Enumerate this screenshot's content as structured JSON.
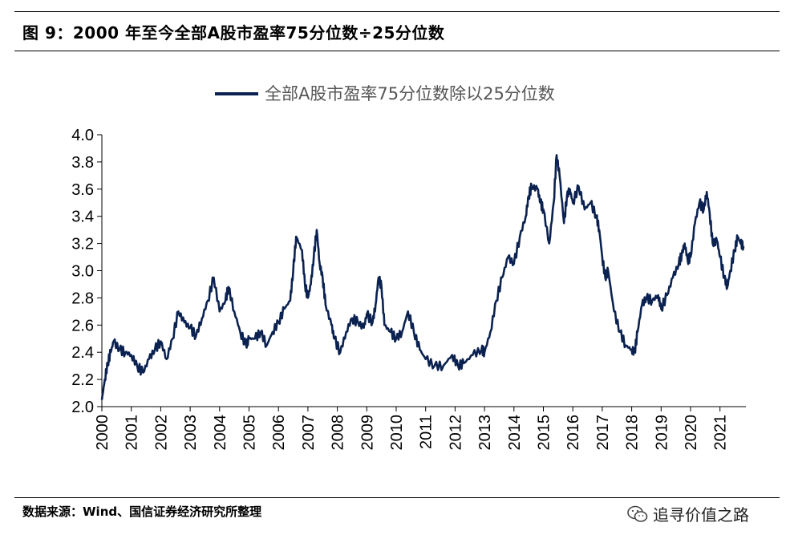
{
  "header": {
    "title": "图 9：2000 年至今全部A股市盈率75分位数÷25分位数"
  },
  "footer": {
    "source": "数据来源：Wind、国信证券经济研究所整理",
    "watermark": "追寻价值之路",
    "watermark_icon": "wechat-icon"
  },
  "colors": {
    "series": "#0b2250",
    "axis": "#000000"
  },
  "chart_data": {
    "type": "line",
    "legend_position": "top-center",
    "grid": false,
    "ylim": [
      2.0,
      4.0
    ],
    "yticks": [
      "2.0",
      "2.2",
      "2.4",
      "2.6",
      "2.8",
      "3.0",
      "3.2",
      "3.4",
      "3.6",
      "3.8",
      "4.0"
    ],
    "xlim": [
      2000,
      2021.8
    ],
    "xticks": [
      "2000",
      "2001",
      "2002",
      "2003",
      "2004",
      "2005",
      "2006",
      "2007",
      "2008",
      "2009",
      "2010",
      "2011",
      "2012",
      "2013",
      "2014",
      "2015",
      "2016",
      "2017",
      "2018",
      "2019",
      "2020",
      "2021"
    ],
    "series": [
      {
        "name": "全部A股市盈率75分位数除以25分位数",
        "points": [
          [
            2000.0,
            2.05
          ],
          [
            2000.1,
            2.2
          ],
          [
            2000.2,
            2.32
          ],
          [
            2000.3,
            2.4
          ],
          [
            2000.4,
            2.48
          ],
          [
            2000.6,
            2.42
          ],
          [
            2000.8,
            2.4
          ],
          [
            2001.0,
            2.38
          ],
          [
            2001.2,
            2.3
          ],
          [
            2001.4,
            2.25
          ],
          [
            2001.6,
            2.35
          ],
          [
            2001.8,
            2.42
          ],
          [
            2002.0,
            2.48
          ],
          [
            2002.2,
            2.35
          ],
          [
            2002.4,
            2.5
          ],
          [
            2002.6,
            2.7
          ],
          [
            2002.8,
            2.62
          ],
          [
            2003.0,
            2.58
          ],
          [
            2003.2,
            2.52
          ],
          [
            2003.4,
            2.65
          ],
          [
            2003.6,
            2.78
          ],
          [
            2003.8,
            2.95
          ],
          [
            2004.0,
            2.7
          ],
          [
            2004.2,
            2.78
          ],
          [
            2004.3,
            2.88
          ],
          [
            2004.5,
            2.7
          ],
          [
            2004.7,
            2.55
          ],
          [
            2004.9,
            2.45
          ],
          [
            2005.0,
            2.5
          ],
          [
            2005.2,
            2.5
          ],
          [
            2005.4,
            2.55
          ],
          [
            2005.6,
            2.45
          ],
          [
            2005.8,
            2.55
          ],
          [
            2006.0,
            2.62
          ],
          [
            2006.2,
            2.72
          ],
          [
            2006.4,
            2.78
          ],
          [
            2006.5,
            3.0
          ],
          [
            2006.6,
            3.25
          ],
          [
            2006.8,
            3.15
          ],
          [
            2006.9,
            2.9
          ],
          [
            2007.0,
            2.8
          ],
          [
            2007.1,
            2.9
          ],
          [
            2007.2,
            3.1
          ],
          [
            2007.3,
            3.3
          ],
          [
            2007.4,
            3.05
          ],
          [
            2007.5,
            2.95
          ],
          [
            2007.6,
            2.75
          ],
          [
            2007.8,
            2.6
          ],
          [
            2007.9,
            2.5
          ],
          [
            2008.1,
            2.4
          ],
          [
            2008.3,
            2.55
          ],
          [
            2008.5,
            2.65
          ],
          [
            2008.7,
            2.62
          ],
          [
            2008.9,
            2.58
          ],
          [
            2009.0,
            2.68
          ],
          [
            2009.2,
            2.62
          ],
          [
            2009.3,
            2.75
          ],
          [
            2009.4,
            2.95
          ],
          [
            2009.5,
            2.88
          ],
          [
            2009.6,
            2.6
          ],
          [
            2009.8,
            2.55
          ],
          [
            2010.0,
            2.5
          ],
          [
            2010.2,
            2.55
          ],
          [
            2010.4,
            2.7
          ],
          [
            2010.6,
            2.55
          ],
          [
            2010.8,
            2.42
          ],
          [
            2011.0,
            2.35
          ],
          [
            2011.3,
            2.3
          ],
          [
            2011.6,
            2.3
          ],
          [
            2011.9,
            2.38
          ],
          [
            2012.1,
            2.3
          ],
          [
            2012.3,
            2.32
          ],
          [
            2012.6,
            2.38
          ],
          [
            2012.9,
            2.42
          ],
          [
            2013.0,
            2.4
          ],
          [
            2013.2,
            2.55
          ],
          [
            2013.4,
            2.78
          ],
          [
            2013.6,
            2.95
          ],
          [
            2013.8,
            3.1
          ],
          [
            2014.0,
            3.05
          ],
          [
            2014.2,
            3.25
          ],
          [
            2014.4,
            3.4
          ],
          [
            2014.5,
            3.55
          ],
          [
            2014.6,
            3.62
          ],
          [
            2014.8,
            3.6
          ],
          [
            2014.9,
            3.5
          ],
          [
            2015.0,
            3.45
          ],
          [
            2015.2,
            3.2
          ],
          [
            2015.35,
            3.5
          ],
          [
            2015.45,
            3.85
          ],
          [
            2015.55,
            3.7
          ],
          [
            2015.7,
            3.35
          ],
          [
            2015.8,
            3.55
          ],
          [
            2015.9,
            3.6
          ],
          [
            2016.0,
            3.5
          ],
          [
            2016.2,
            3.62
          ],
          [
            2016.4,
            3.45
          ],
          [
            2016.6,
            3.5
          ],
          [
            2016.8,
            3.4
          ],
          [
            2016.9,
            3.3
          ],
          [
            2017.0,
            3.1
          ],
          [
            2017.1,
            2.95
          ],
          [
            2017.2,
            3.0
          ],
          [
            2017.4,
            2.7
          ],
          [
            2017.6,
            2.55
          ],
          [
            2017.8,
            2.45
          ],
          [
            2018.0,
            2.42
          ],
          [
            2018.1,
            2.4
          ],
          [
            2018.2,
            2.55
          ],
          [
            2018.35,
            2.75
          ],
          [
            2018.5,
            2.8
          ],
          [
            2018.7,
            2.78
          ],
          [
            2018.9,
            2.82
          ],
          [
            2019.0,
            2.72
          ],
          [
            2019.2,
            2.82
          ],
          [
            2019.4,
            2.95
          ],
          [
            2019.6,
            3.05
          ],
          [
            2019.7,
            3.12
          ],
          [
            2019.8,
            3.2
          ],
          [
            2019.9,
            3.08
          ],
          [
            2020.0,
            3.1
          ],
          [
            2020.15,
            3.35
          ],
          [
            2020.3,
            3.5
          ],
          [
            2020.45,
            3.45
          ],
          [
            2020.55,
            3.58
          ],
          [
            2020.65,
            3.42
          ],
          [
            2020.75,
            3.2
          ],
          [
            2020.9,
            3.22
          ],
          [
            2021.0,
            3.1
          ],
          [
            2021.15,
            2.95
          ],
          [
            2021.25,
            2.88
          ],
          [
            2021.35,
            3.0
          ],
          [
            2021.5,
            3.15
          ],
          [
            2021.6,
            3.25
          ],
          [
            2021.7,
            3.2
          ],
          [
            2021.8,
            3.18
          ]
        ]
      }
    ]
  }
}
